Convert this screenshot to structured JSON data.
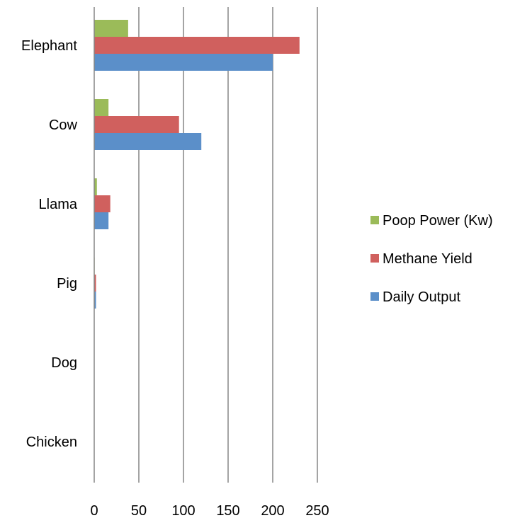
{
  "chart_data": {
    "type": "bar",
    "orientation": "horizontal",
    "title": "",
    "xlabel": "",
    "ylabel": "",
    "categories": [
      "Elephant",
      "Cow",
      "Llama",
      "Pig",
      "Dog",
      "Chicken"
    ],
    "series": [
      {
        "name": "Daily Output",
        "color": "#5b8fc9",
        "values": [
          200,
          120,
          16,
          2,
          0.3,
          0.1
        ]
      },
      {
        "name": "Methane Yield",
        "color": "#d0605e",
        "values": [
          230,
          95,
          18,
          2,
          0.2,
          0.1
        ]
      },
      {
        "name": "Poop Power (Kw)",
        "color": "#9bbb59",
        "values": [
          38,
          16,
          3,
          0.5,
          0.1,
          0.05
        ]
      }
    ],
    "xlim": [
      0,
      250
    ],
    "x_ticks": [
      "0",
      "50",
      "100",
      "150",
      "200",
      "250"
    ],
    "grid": "vertical",
    "legend": {
      "position": "right",
      "order": [
        "Poop Power (Kw)",
        "Methane Yield",
        "Daily Output"
      ]
    },
    "colors": {
      "grid": "#868686",
      "axis": "#868686"
    }
  }
}
